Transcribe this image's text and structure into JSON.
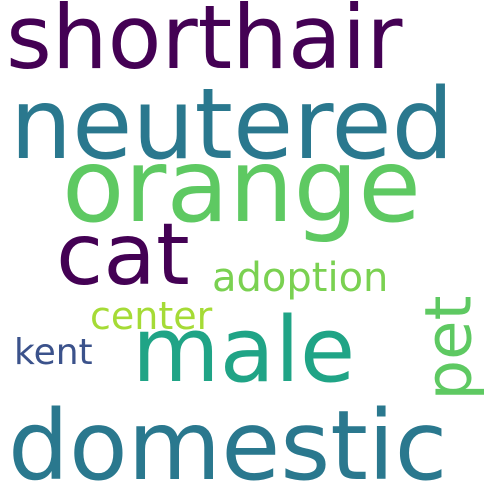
{
  "words": {
    "shorthair": {
      "text": "shorthair",
      "color": "#440154"
    },
    "neutered": {
      "text": "neutered",
      "color": "#2a788e"
    },
    "orange": {
      "text": "orange",
      "color": "#5ec962"
    },
    "cat": {
      "text": "cat",
      "color": "#440154"
    },
    "adoption": {
      "text": "adoption",
      "color": "#7ad151"
    },
    "center": {
      "text": "center",
      "color": "#a5db36"
    },
    "male": {
      "text": "male",
      "color": "#20a486"
    },
    "pet": {
      "text": "pet",
      "color": "#5ec962"
    },
    "kent": {
      "text": "kent",
      "color": "#3b528b"
    },
    "domestic": {
      "text": "domestic",
      "color": "#2a788e"
    }
  }
}
